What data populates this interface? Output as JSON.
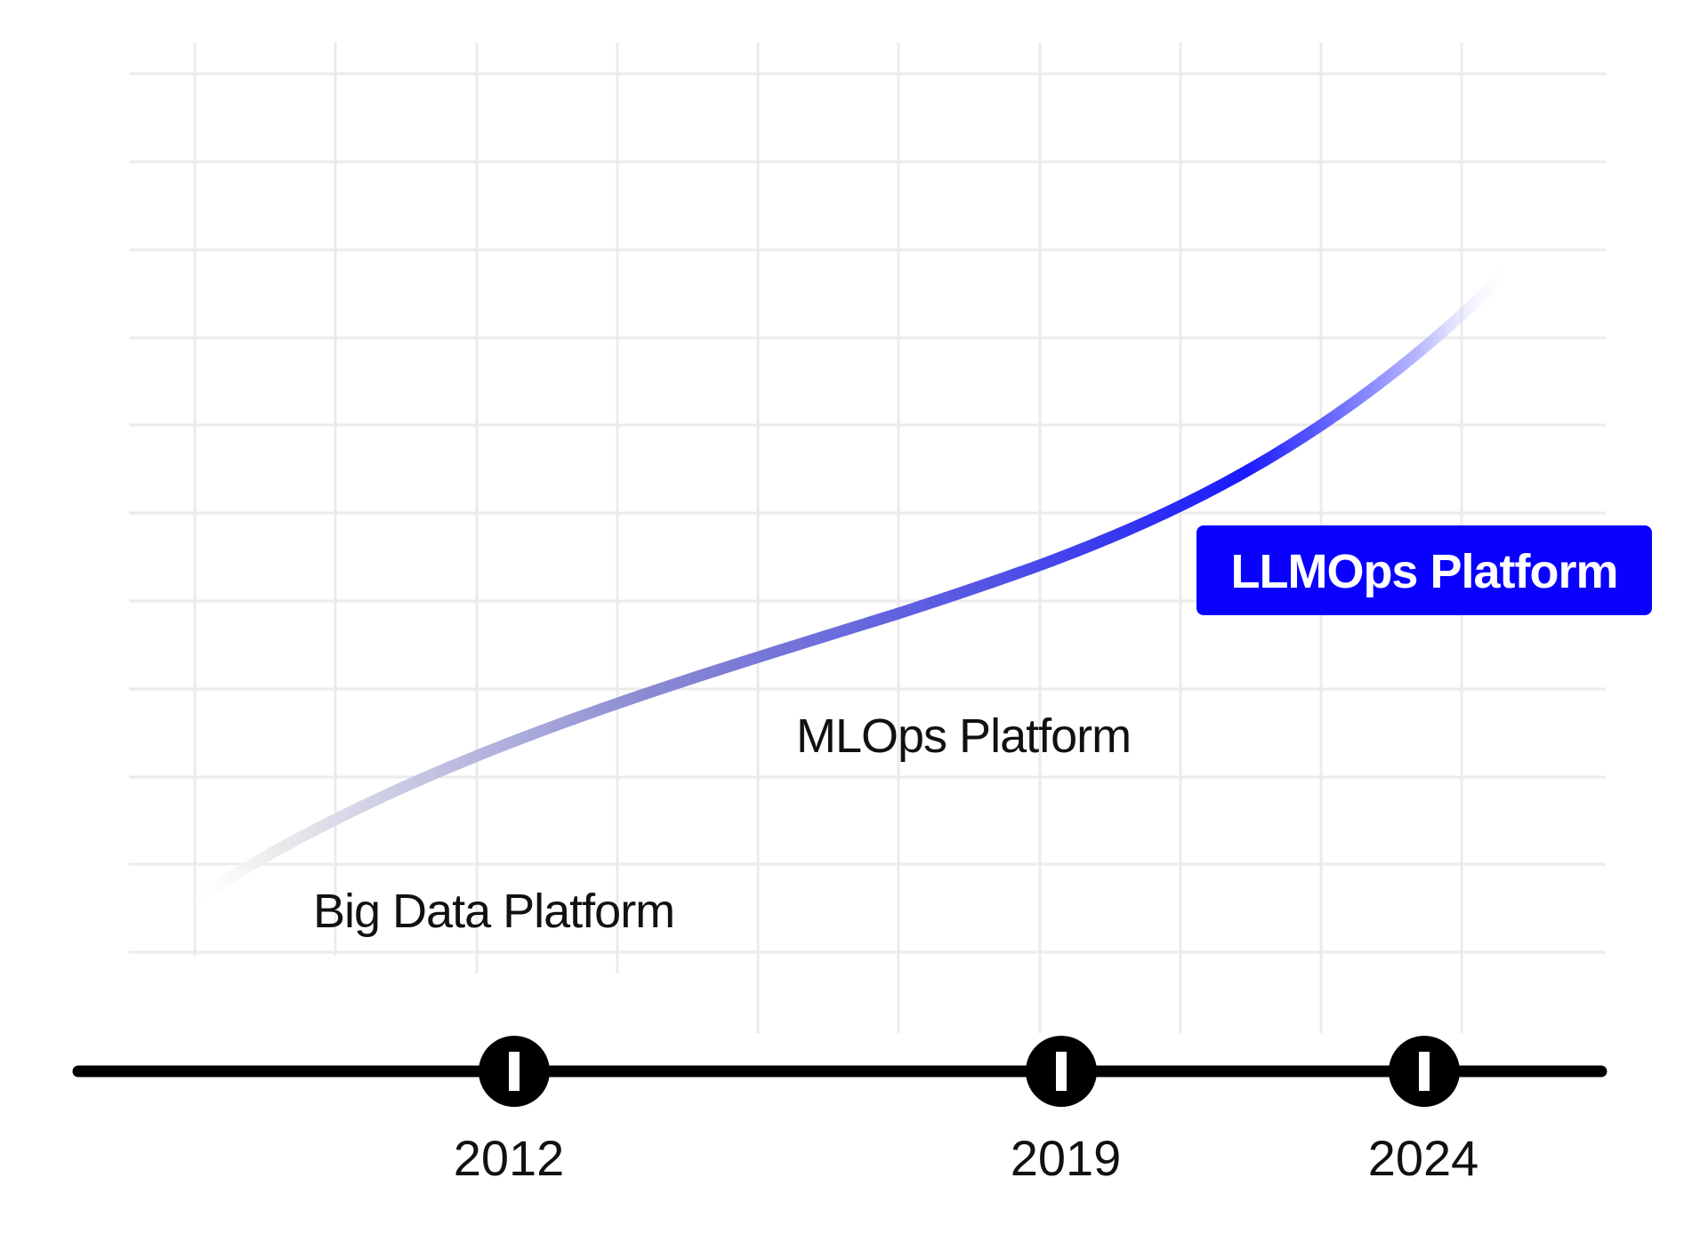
{
  "diagram": {
    "eras": [
      {
        "label": "Big Data Platform"
      },
      {
        "label": "MLOps Platform"
      },
      {
        "label": "LLMOps Platform"
      }
    ],
    "milestones": [
      {
        "year": "2012"
      },
      {
        "year": "2019"
      },
      {
        "year": "2024"
      }
    ],
    "colors": {
      "axis": "#000000",
      "grid": "#ebebeb",
      "curve_start": "#f2f2f2",
      "curve_mid": "#7d7dd6",
      "curve_peak": "#1a1aff",
      "highlight_bg": "#0a00ff",
      "highlight_text": "#ffffff",
      "label_text": "#111111"
    }
  }
}
